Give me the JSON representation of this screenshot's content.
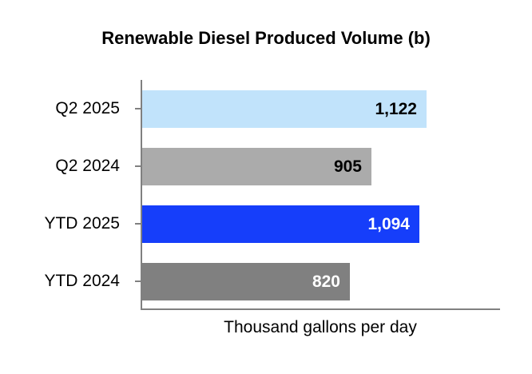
{
  "title": "Renewable Diesel Produced Volume (b)",
  "chart_data": {
    "type": "bar",
    "orientation": "horizontal",
    "title": "Renewable Diesel Produced Volume (b)",
    "xlabel": "Thousand gallons per day",
    "categories": [
      "Q2 2025",
      "Q2 2024",
      "YTD 2025",
      "YTD 2024"
    ],
    "values": [
      1122,
      905,
      1094,
      820
    ],
    "value_labels": [
      "1,122",
      "905",
      "1,094",
      "820"
    ],
    "bar_colors": [
      "#C1E3FB",
      "#ABABAB",
      "#163EFA",
      "#808080"
    ],
    "value_label_colors": [
      "#000000",
      "#000000",
      "#FFFFFF",
      "#FFFFFF"
    ],
    "xlim": [
      0,
      1400
    ],
    "grid": false,
    "legend": false,
    "axis_color": "#808080",
    "background": "#FFFFFF"
  }
}
